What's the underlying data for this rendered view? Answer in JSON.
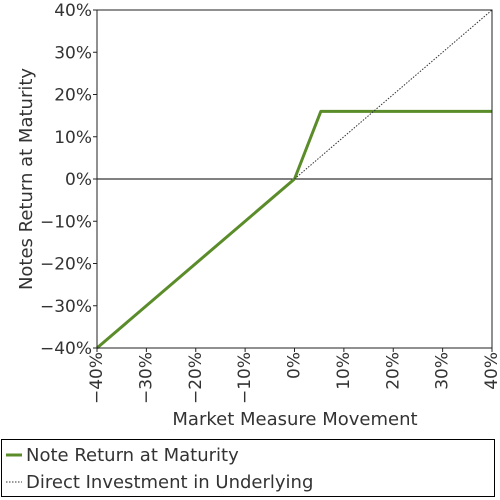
{
  "chart_data": {
    "type": "line",
    "xlabel": "Market Measure Movement",
    "ylabel": "Notes Return at Maturity",
    "xlim": [
      -40,
      40
    ],
    "ylim": [
      -40,
      40
    ],
    "x_ticks": [
      "−40%",
      "−30%",
      "−20%",
      "−10%",
      "0%",
      "10%",
      "20%",
      "30%",
      "40%"
    ],
    "y_ticks": [
      "40%",
      "30%",
      "20%",
      "10%",
      "0%",
      "−10%",
      "−20%",
      "−30%",
      "−40%"
    ],
    "x_tick_values": [
      -40,
      -30,
      -20,
      -10,
      0,
      10,
      20,
      30,
      40
    ],
    "y_tick_values": [
      40,
      30,
      20,
      10,
      0,
      -10,
      -20,
      -30,
      -40
    ],
    "series": [
      {
        "name": "Note Return at Maturity",
        "color": "#5b8c2a",
        "style": "solid",
        "x": [
          -40,
          0,
          5.33,
          40
        ],
        "y": [
          -40,
          0,
          16,
          16
        ]
      },
      {
        "name": "Direct Investment in Underlying",
        "color": "#333333",
        "style": "dotted",
        "x": [
          0,
          40
        ],
        "y": [
          0,
          40
        ]
      }
    ],
    "zero_line": true,
    "legend_position": "bottom"
  }
}
